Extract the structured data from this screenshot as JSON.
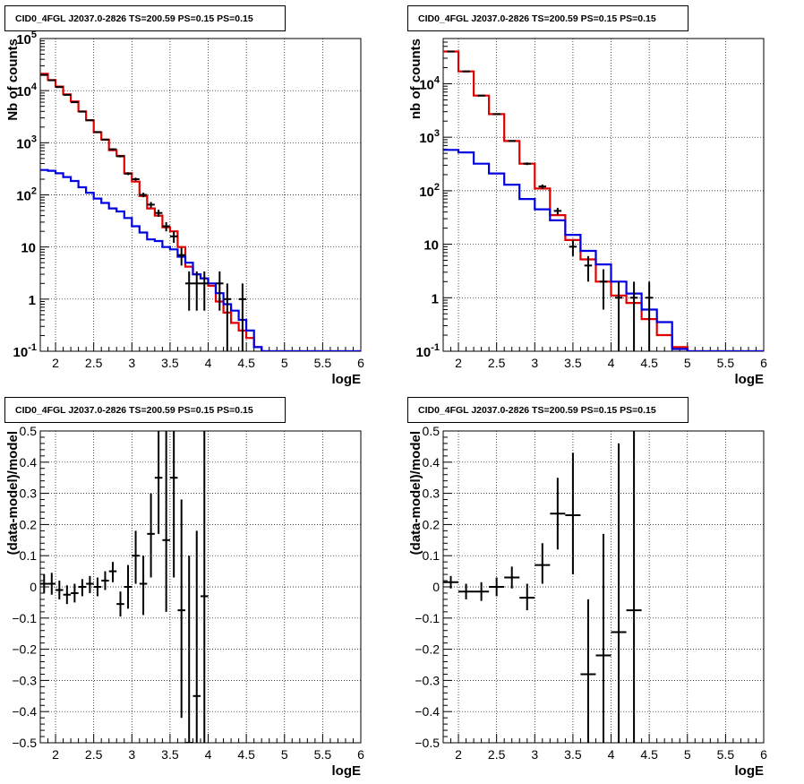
{
  "chart_data": [
    {
      "type": "line",
      "panel": "top-left",
      "title": "CID0_4FGL J2037.0-2826 TS=200.59 PS=0.15 PS=0.15",
      "xlabel": "logE",
      "ylabel": "Nb of counts",
      "xlim": [
        1.8,
        6.0
      ],
      "ylim": [
        0.1,
        100000
      ],
      "yscale": "log",
      "grid": true,
      "x_ticks": [
        "2",
        "2.5",
        "3",
        "3.5",
        "4",
        "4.5",
        "5",
        "5.5",
        "6"
      ],
      "y_ticks": [
        "10^-1",
        "1",
        "10",
        "10^2",
        "10^3",
        "10^4",
        "10^5"
      ],
      "series": [
        {
          "color": "#e00000",
          "style": "step",
          "edges": [
            1.8,
            1.9,
            2.0,
            2.1,
            2.2,
            2.3,
            2.4,
            2.5,
            2.6,
            2.7,
            2.8,
            2.9,
            3.0,
            3.1,
            3.2,
            3.3,
            3.4,
            3.5,
            3.6,
            3.7,
            3.8,
            3.9,
            4.0,
            4.1,
            4.2,
            4.3,
            4.4,
            4.5,
            4.6,
            4.7,
            4.8,
            4.9,
            5.0,
            6.0
          ],
          "values": [
            21000,
            16000,
            12000,
            8500,
            6200,
            4000,
            2700,
            1600,
            1150,
            720,
            560,
            260,
            180,
            95,
            55,
            40,
            24,
            20,
            10,
            4.2,
            3.0,
            2.5,
            1.8,
            0.9,
            0.55,
            0.35,
            0.25,
            0.18,
            0.12,
            0.1,
            0.1,
            0.1,
            0.1
          ]
        },
        {
          "color": "#0000e0",
          "style": "step",
          "edges": [
            1.8,
            1.9,
            2.0,
            2.1,
            2.2,
            2.3,
            2.4,
            2.5,
            2.6,
            2.7,
            2.8,
            2.9,
            3.0,
            3.1,
            3.2,
            3.3,
            3.4,
            3.5,
            3.6,
            3.7,
            3.8,
            3.9,
            4.0,
            4.1,
            4.2,
            4.3,
            4.4,
            4.5,
            4.6,
            4.7,
            4.8,
            4.9,
            5.0,
            6.0
          ],
          "values": [
            300,
            290,
            260,
            220,
            185,
            140,
            110,
            85,
            70,
            55,
            48,
            36,
            25,
            19,
            14,
            13,
            10,
            9,
            6.5,
            5,
            3,
            2.5,
            2,
            1.3,
            0.8,
            0.6,
            0.4,
            0.25,
            0.12,
            0.1,
            0.1,
            0.1,
            0.1
          ]
        },
        {
          "color": "#000000",
          "style": "errorbar",
          "points": [
            {
              "x": 1.85,
              "y": 20000,
              "lo": 19800,
              "hi": 20200
            },
            {
              "x": 1.95,
              "y": 15800,
              "lo": 15600,
              "hi": 16000
            },
            {
              "x": 2.05,
              "y": 11700,
              "lo": 11500,
              "hi": 11900
            },
            {
              "x": 2.15,
              "y": 8300,
              "lo": 8150,
              "hi": 8450
            },
            {
              "x": 2.25,
              "y": 6000,
              "lo": 5880,
              "hi": 6120
            },
            {
              "x": 2.35,
              "y": 3950,
              "lo": 3860,
              "hi": 4040
            },
            {
              "x": 2.45,
              "y": 2700,
              "lo": 2630,
              "hi": 2770
            },
            {
              "x": 2.55,
              "y": 1600,
              "lo": 1550,
              "hi": 1650
            },
            {
              "x": 2.65,
              "y": 1150,
              "lo": 1110,
              "hi": 1190
            },
            {
              "x": 2.75,
              "y": 750,
              "lo": 720,
              "hi": 780
            },
            {
              "x": 2.85,
              "y": 550,
              "lo": 525,
              "hi": 575
            },
            {
              "x": 2.95,
              "y": 255,
              "lo": 240,
              "hi": 270
            },
            {
              "x": 3.05,
              "y": 200,
              "lo": 186,
              "hi": 214
            },
            {
              "x": 3.15,
              "y": 100,
              "lo": 90,
              "hi": 110
            },
            {
              "x": 3.25,
              "y": 65,
              "lo": 57,
              "hi": 73
            },
            {
              "x": 3.35,
              "y": 45,
              "lo": 38,
              "hi": 52
            },
            {
              "x": 3.45,
              "y": 25,
              "lo": 20,
              "hi": 30
            },
            {
              "x": 3.55,
              "y": 16,
              "lo": 12,
              "hi": 20
            },
            {
              "x": 3.65,
              "y": 7,
              "lo": 4.4,
              "hi": 9.6
            },
            {
              "x": 3.75,
              "y": 2,
              "lo": 0.6,
              "hi": 3.4
            },
            {
              "x": 3.85,
              "y": 2,
              "lo": 0.6,
              "hi": 3.4
            },
            {
              "x": 3.95,
              "y": 2,
              "lo": 0.6,
              "hi": 3.4
            },
            {
              "x": 4.15,
              "y": 2,
              "lo": 0.6,
              "hi": 3.4
            },
            {
              "x": 4.25,
              "y": 1,
              "lo": 0.1,
              "hi": 2.0
            },
            {
              "x": 4.45,
              "y": 1,
              "lo": 0.1,
              "hi": 2.0
            }
          ]
        }
      ]
    },
    {
      "type": "line",
      "panel": "top-right",
      "title": "CID0_4FGL J2037.0-2826 TS=200.59 PS=0.15 PS=0.15",
      "xlabel": "logE",
      "ylabel": "nb of counts",
      "xlim": [
        1.8,
        6.0
      ],
      "ylim": [
        0.1,
        70000
      ],
      "yscale": "log",
      "grid": true,
      "x_ticks": [
        "2",
        "2.5",
        "3",
        "3.5",
        "4",
        "4.5",
        "5",
        "5.5",
        "6"
      ],
      "y_ticks": [
        "10^-1",
        "1",
        "10",
        "10^2",
        "10^3",
        "10^4"
      ],
      "series": [
        {
          "color": "#e00000",
          "style": "step",
          "edges": [
            1.8,
            2.0,
            2.2,
            2.4,
            2.6,
            2.8,
            3.0,
            3.2,
            3.4,
            3.6,
            3.8,
            4.0,
            4.2,
            4.4,
            4.6,
            4.8,
            5.0,
            6.0
          ],
          "values": [
            40000,
            17000,
            6000,
            2700,
            850,
            320,
            110,
            35,
            12,
            5.2,
            2,
            1.1,
            0.8,
            0.4,
            0.2,
            0.12,
            0.1
          ]
        },
        {
          "color": "#0000e0",
          "style": "step",
          "edges": [
            1.8,
            2.0,
            2.2,
            2.4,
            2.6,
            2.8,
            3.0,
            3.2,
            3.4,
            3.6,
            3.8,
            4.0,
            4.2,
            4.4,
            4.6,
            4.8,
            5.0,
            6.0
          ],
          "values": [
            580,
            520,
            320,
            210,
            130,
            70,
            45,
            28,
            15,
            7.5,
            4.2,
            2,
            1.2,
            0.6,
            0.35,
            0.11,
            0.1
          ]
        },
        {
          "color": "#000000",
          "style": "errorbar",
          "points": [
            {
              "x": 1.9,
              "y": 40000,
              "lo": 39800,
              "hi": 40200
            },
            {
              "x": 2.1,
              "y": 17000,
              "lo": 16870,
              "hi": 17130
            },
            {
              "x": 2.3,
              "y": 6000,
              "lo": 5920,
              "hi": 6080
            },
            {
              "x": 2.5,
              "y": 2700,
              "lo": 2650,
              "hi": 2750
            },
            {
              "x": 2.7,
              "y": 850,
              "lo": 820,
              "hi": 880
            },
            {
              "x": 2.9,
              "y": 320,
              "lo": 302,
              "hi": 338
            },
            {
              "x": 3.1,
              "y": 120,
              "lo": 109,
              "hi": 131
            },
            {
              "x": 3.3,
              "y": 42,
              "lo": 36,
              "hi": 48
            },
            {
              "x": 3.5,
              "y": 9,
              "lo": 6,
              "hi": 12
            },
            {
              "x": 3.7,
              "y": 4,
              "lo": 2,
              "hi": 6
            },
            {
              "x": 3.9,
              "y": 2,
              "lo": 0.6,
              "hi": 3.4
            },
            {
              "x": 4.1,
              "y": 1,
              "lo": 0.1,
              "hi": 2
            },
            {
              "x": 4.3,
              "y": 1,
              "lo": 0.1,
              "hi": 2
            },
            {
              "x": 4.5,
              "y": 1,
              "lo": 0.1,
              "hi": 2
            }
          ]
        }
      ]
    },
    {
      "type": "scatter",
      "panel": "bottom-left",
      "title": "CID0_4FGL J2037.0-2826 TS=200.59 PS=0.15 PS=0.15",
      "xlabel": "logE",
      "ylabel": "(data-model)/model",
      "xlim": [
        1.8,
        6.0
      ],
      "ylim": [
        -0.5,
        0.5
      ],
      "yscale": "linear",
      "grid": true,
      "x_ticks": [
        "2",
        "2.5",
        "3",
        "3.5",
        "4",
        "4.5",
        "5",
        "5.5",
        "6"
      ],
      "y_ticks": [
        "−0.5",
        "−0.4",
        "−0.3",
        "−0.2",
        "−0.1",
        "0",
        "0.1",
        "0.2",
        "0.3",
        "0.4",
        "0.5"
      ],
      "series": [
        {
          "color": "#000000",
          "style": "errorbar",
          "xerr": 0.05,
          "points": [
            {
              "x": 1.85,
              "y": 0.01,
              "lo": -0.02,
              "hi": 0.04
            },
            {
              "x": 1.95,
              "y": 0.01,
              "lo": -0.025,
              "hi": 0.045
            },
            {
              "x": 2.05,
              "y": -0.01,
              "lo": -0.04,
              "hi": 0.02
            },
            {
              "x": 2.15,
              "y": -0.025,
              "lo": -0.055,
              "hi": 0.005
            },
            {
              "x": 2.25,
              "y": -0.02,
              "lo": -0.05,
              "hi": 0.01
            },
            {
              "x": 2.35,
              "y": 0.0,
              "lo": -0.03,
              "hi": 0.025
            },
            {
              "x": 2.45,
              "y": 0.01,
              "lo": -0.02,
              "hi": 0.035
            },
            {
              "x": 2.55,
              "y": 0.0,
              "lo": -0.03,
              "hi": 0.03
            },
            {
              "x": 2.65,
              "y": 0.02,
              "lo": -0.01,
              "hi": 0.05
            },
            {
              "x": 2.75,
              "y": 0.05,
              "lo": 0.015,
              "hi": 0.08
            },
            {
              "x": 2.85,
              "y": -0.055,
              "lo": -0.095,
              "hi": -0.015
            },
            {
              "x": 2.95,
              "y": 0.0,
              "lo": -0.07,
              "hi": 0.07
            },
            {
              "x": 3.05,
              "y": 0.1,
              "lo": 0.01,
              "hi": 0.18
            },
            {
              "x": 3.15,
              "y": 0.01,
              "lo": -0.09,
              "hi": 0.1
            },
            {
              "x": 3.25,
              "y": 0.17,
              "lo": 0.03,
              "hi": 0.3
            },
            {
              "x": 3.35,
              "y": 0.35,
              "lo": 0.17,
              "hi": 0.5
            },
            {
              "x": 3.45,
              "y": 0.15,
              "lo": -0.08,
              "hi": 0.5
            },
            {
              "x": 3.55,
              "y": 0.35,
              "lo": 0.03,
              "hi": 0.5
            },
            {
              "x": 3.65,
              "y": -0.075,
              "lo": -0.42,
              "hi": 0.28
            },
            {
              "x": 3.75,
              "y": -0.5,
              "lo": -0.5,
              "hi": 0.1
            },
            {
              "x": 3.85,
              "y": -0.35,
              "lo": -0.5,
              "hi": 0.18
            },
            {
              "x": 3.95,
              "y": -0.03,
              "lo": -0.5,
              "hi": 0.5
            }
          ]
        }
      ]
    },
    {
      "type": "scatter",
      "panel": "bottom-right",
      "title": "CID0_4FGL J2037.0-2826 TS=200.59 PS=0.15 PS=0.15",
      "xlabel": "logE",
      "ylabel": "(data-model)/model",
      "xlim": [
        1.8,
        6.0
      ],
      "ylim": [
        -0.5,
        0.5
      ],
      "yscale": "linear",
      "grid": true,
      "x_ticks": [
        "2",
        "2.5",
        "3",
        "3.5",
        "4",
        "4.5",
        "5",
        "5.5",
        "6"
      ],
      "y_ticks": [
        "−0.5",
        "−0.4",
        "−0.3",
        "−0.2",
        "−0.1",
        "0",
        "0.1",
        "0.2",
        "0.3",
        "0.4",
        "0.5"
      ],
      "series": [
        {
          "color": "#000000",
          "style": "errorbar",
          "xerr": 0.1,
          "points": [
            {
              "x": 1.9,
              "y": 0.015,
              "lo": -0.005,
              "hi": 0.035
            },
            {
              "x": 2.1,
              "y": -0.015,
              "lo": -0.04,
              "hi": 0.01
            },
            {
              "x": 2.3,
              "y": -0.015,
              "lo": -0.045,
              "hi": 0.015
            },
            {
              "x": 2.5,
              "y": 0.0,
              "lo": -0.03,
              "hi": 0.03
            },
            {
              "x": 2.7,
              "y": 0.03,
              "lo": -0.005,
              "hi": 0.065
            },
            {
              "x": 2.9,
              "y": -0.035,
              "lo": -0.075,
              "hi": 0.01
            },
            {
              "x": 3.1,
              "y": 0.07,
              "lo": 0.01,
              "hi": 0.14
            },
            {
              "x": 3.3,
              "y": 0.235,
              "lo": 0.12,
              "hi": 0.35
            },
            {
              "x": 3.5,
              "y": 0.23,
              "lo": 0.04,
              "hi": 0.43
            },
            {
              "x": 3.7,
              "y": -0.28,
              "lo": -0.5,
              "hi": -0.04
            },
            {
              "x": 3.9,
              "y": -0.22,
              "lo": -0.5,
              "hi": 0.17
            },
            {
              "x": 4.1,
              "y": -0.145,
              "lo": -0.5,
              "hi": 0.46
            },
            {
              "x": 4.3,
              "y": -0.075,
              "lo": -0.5,
              "hi": 0.5
            }
          ]
        }
      ]
    }
  ]
}
